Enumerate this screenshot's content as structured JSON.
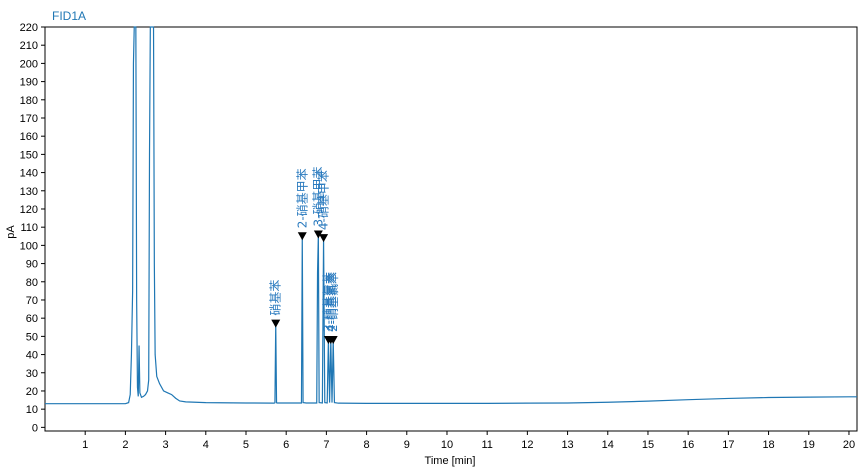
{
  "chart_data": {
    "type": "line",
    "title": "FID1A",
    "xlabel": "Time [min]",
    "ylabel": "pA",
    "xlim": [
      0,
      20.2
    ],
    "ylim": [
      -2,
      220
    ],
    "x_ticks": [
      1,
      2,
      3,
      4,
      5,
      6,
      7,
      8,
      9,
      10,
      11,
      12,
      13,
      14,
      15,
      16,
      17,
      18,
      19,
      20
    ],
    "y_ticks": [
      0,
      10,
      20,
      30,
      40,
      50,
      60,
      70,
      80,
      90,
      100,
      110,
      120,
      130,
      140,
      150,
      160,
      170,
      180,
      190,
      200,
      210,
      220
    ],
    "grid": false,
    "series": [
      {
        "color": "#1f77b4",
        "points": [
          [
            0.0,
            13.0
          ],
          [
            2.0,
            13.0
          ],
          [
            2.08,
            13.6
          ],
          [
            2.12,
            18
          ],
          [
            2.15,
            40
          ],
          [
            2.18,
            75
          ],
          [
            2.2,
            200
          ],
          [
            2.22,
            225
          ],
          [
            2.26,
            225
          ],
          [
            2.28,
            70
          ],
          [
            2.3,
            22
          ],
          [
            2.32,
            17
          ],
          [
            2.34,
            45
          ],
          [
            2.36,
            19
          ],
          [
            2.4,
            16.5
          ],
          [
            2.45,
            17
          ],
          [
            2.5,
            18
          ],
          [
            2.55,
            20
          ],
          [
            2.58,
            26
          ],
          [
            2.6,
            150
          ],
          [
            2.62,
            225
          ],
          [
            2.7,
            225
          ],
          [
            2.72,
            90
          ],
          [
            2.74,
            40
          ],
          [
            2.78,
            28
          ],
          [
            2.85,
            24
          ],
          [
            2.95,
            20
          ],
          [
            3.05,
            19
          ],
          [
            3.15,
            18
          ],
          [
            3.25,
            16
          ],
          [
            3.35,
            14.5
          ],
          [
            3.5,
            14
          ],
          [
            4.0,
            13.6
          ],
          [
            5.0,
            13.4
          ],
          [
            5.7,
            13.3
          ],
          [
            5.72,
            13.5
          ],
          [
            5.74,
            57
          ],
          [
            5.76,
            13.5
          ],
          [
            5.78,
            13.4
          ],
          [
            6.3,
            13.4
          ],
          [
            6.38,
            13.4
          ],
          [
            6.4,
            105
          ],
          [
            6.42,
            13.6
          ],
          [
            6.5,
            13.4
          ],
          [
            6.72,
            13.4
          ],
          [
            6.76,
            13.4
          ],
          [
            6.78,
            85
          ],
          [
            6.8,
            106
          ],
          [
            6.82,
            13.6
          ],
          [
            6.9,
            13.4
          ],
          [
            6.93,
            104
          ],
          [
            6.96,
            13.6
          ],
          [
            7.02,
            13.4
          ],
          [
            7.05,
            48
          ],
          [
            7.08,
            13.6
          ],
          [
            7.11,
            48
          ],
          [
            7.14,
            13.6
          ],
          [
            7.17,
            48
          ],
          [
            7.2,
            13.6
          ],
          [
            7.3,
            13.3
          ],
          [
            8.0,
            13.2
          ],
          [
            9.0,
            13.2
          ],
          [
            10.0,
            13.2
          ],
          [
            11.0,
            13.2
          ],
          [
            12.0,
            13.3
          ],
          [
            13.0,
            13.4
          ],
          [
            14.0,
            13.8
          ],
          [
            15.0,
            14.4
          ],
          [
            16.0,
            15.2
          ],
          [
            17.0,
            15.9
          ],
          [
            18.0,
            16.4
          ],
          [
            19.0,
            16.6
          ],
          [
            20.0,
            16.8
          ],
          [
            20.2,
            16.8
          ]
        ]
      }
    ],
    "peaks": [
      {
        "label": "硝基苯",
        "x": 5.74,
        "y": 57
      },
      {
        "label": "2-硝基甲苯",
        "x": 6.4,
        "y": 105
      },
      {
        "label": "3-硝基甲苯",
        "x": 6.8,
        "y": 106
      },
      {
        "label": "4-硝基甲苯",
        "x": 6.93,
        "y": 104
      },
      {
        "label": "3-硝基氯苯",
        "x": 7.05,
        "y": 48
      },
      {
        "label": "4-硝基氯苯",
        "x": 7.11,
        "y": 48
      },
      {
        "label": "2-硝基氯苯",
        "x": 7.17,
        "y": 48
      }
    ]
  }
}
